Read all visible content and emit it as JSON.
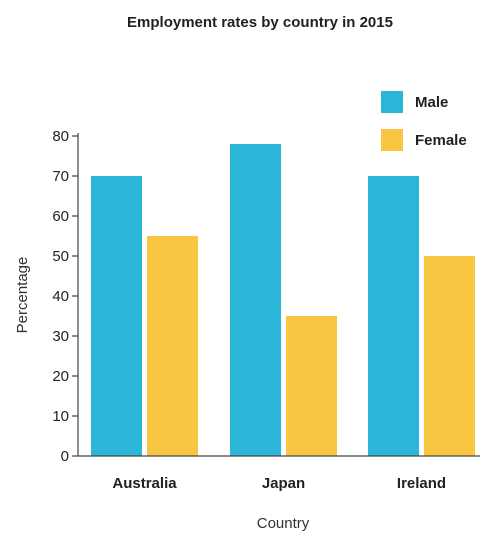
{
  "chart_data": {
    "type": "bar",
    "title": "Employment rates by country in 2015",
    "xlabel": "Country",
    "ylabel": "Percentage",
    "categories": [
      "Australia",
      "Japan",
      "Ireland"
    ],
    "series": [
      {
        "name": "Male",
        "values": [
          70,
          78,
          70
        ],
        "color": "#2bb5d8"
      },
      {
        "name": "Female",
        "values": [
          55,
          35,
          50
        ],
        "color": "#f8c640"
      }
    ],
    "ylim": [
      0,
      80
    ],
    "yticks": [
      "0",
      "10",
      "20",
      "30",
      "40",
      "50",
      "60",
      "70",
      "80"
    ],
    "grid": false,
    "legend_position": "top-right"
  }
}
